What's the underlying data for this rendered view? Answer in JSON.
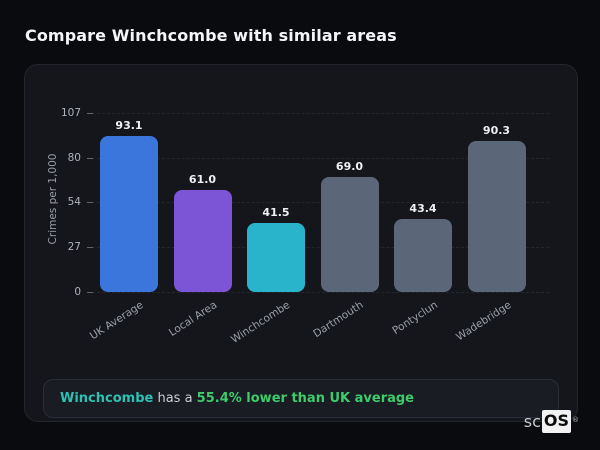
{
  "page": {
    "title": "Compare Winchcombe with similar areas"
  },
  "chart_data": {
    "type": "bar",
    "title": "",
    "xlabel": "",
    "ylabel": "Crimes per 1,000",
    "categories": [
      "UK Average",
      "Local Area",
      "Winchcombe",
      "Dartmouth",
      "Pontyclun",
      "Wadebridge"
    ],
    "values": [
      93.1,
      61.0,
      41.5,
      69.0,
      43.4,
      90.3
    ],
    "value_labels": [
      "93.1",
      "61.0",
      "41.5",
      "69.0",
      "43.4",
      "90.3"
    ],
    "bar_colors": [
      "#3b76dc",
      "#7b55d6",
      "#29b4cc",
      "#5b6678",
      "#5b6678",
      "#5b6678"
    ],
    "ylim": [
      0,
      107
    ],
    "yticks": [
      0,
      27,
      54,
      80,
      107
    ],
    "grid": "horizontal-dashed",
    "legend": "none"
  },
  "insight": {
    "subject": "Winchcombe",
    "connector": " has a ",
    "highlight": "55.4% lower than UK average",
    "subject_color": "#2cc1b4",
    "highlight_color": "#3ecb6c"
  },
  "logo": {
    "prefix": "sc",
    "suffix": "OS",
    "mark": "®"
  }
}
